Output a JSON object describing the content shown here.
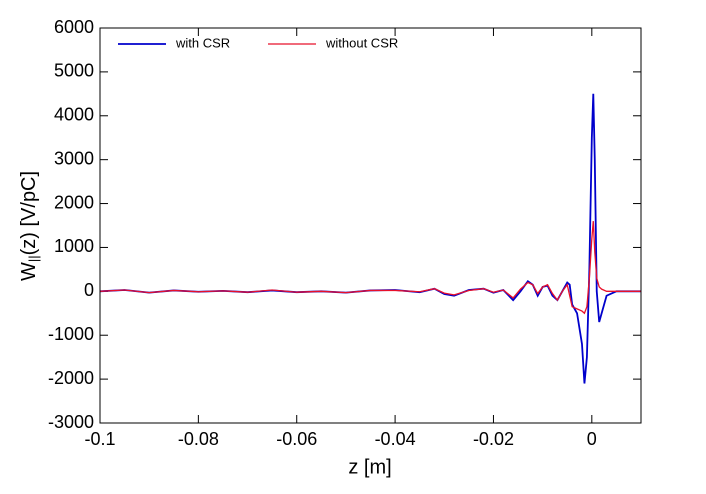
{
  "chart_data": {
    "type": "line",
    "x_label": "z [m]",
    "y_label": [
      "W",
      "||",
      "(z) [V/pC]"
    ],
    "x": [
      -0.1,
      -0.095,
      -0.09,
      -0.085,
      -0.08,
      -0.075,
      -0.07,
      -0.065,
      -0.06,
      -0.055,
      -0.05,
      -0.045,
      -0.04,
      -0.035,
      -0.032,
      -0.03,
      -0.028,
      -0.025,
      -0.022,
      -0.02,
      -0.018,
      -0.016,
      -0.0145,
      -0.013,
      -0.012,
      -0.011,
      -0.01,
      -0.009,
      -0.008,
      -0.007,
      -0.006,
      -0.005,
      -0.0045,
      -0.004,
      -0.003,
      -0.002,
      -0.0015,
      -0.001,
      -0.0005,
      0,
      0.0003,
      0.0006,
      0.001,
      0.0015,
      0.002,
      0.003,
      0.005,
      0.01
    ],
    "series": [
      {
        "name": "with CSR",
        "color": "#0000cc",
        "values": [
          0,
          30,
          -30,
          20,
          -10,
          10,
          -20,
          20,
          -20,
          0,
          -30,
          20,
          30,
          -20,
          60,
          -60,
          -100,
          30,
          60,
          -30,
          30,
          -200,
          0,
          230,
          150,
          -100,
          100,
          130,
          -100,
          -200,
          0,
          200,
          150,
          -300,
          -500,
          -1200,
          -2100,
          -1500,
          500,
          3500,
          4500,
          3000,
          0,
          -700,
          -500,
          -100,
          0,
          0
        ]
      },
      {
        "name": "without CSR",
        "color": "#e8102a",
        "values": [
          0,
          30,
          -30,
          20,
          -10,
          10,
          -20,
          30,
          -20,
          0,
          -30,
          20,
          20,
          -10,
          60,
          -40,
          -80,
          20,
          60,
          -20,
          30,
          -150,
          50,
          200,
          150,
          -50,
          100,
          150,
          -50,
          -200,
          0,
          150,
          -100,
          -350,
          -400,
          -450,
          -500,
          -350,
          300,
          1200,
          1600,
          900,
          300,
          100,
          50,
          0,
          0,
          0
        ]
      }
    ],
    "xlim": [
      -0.1,
      0.01
    ],
    "xticks": [
      -0.1,
      -0.08,
      -0.06,
      -0.04,
      -0.02,
      0
    ],
    "ylim": [
      -3000,
      6000
    ],
    "yticks": [
      -3000,
      -2000,
      -1000,
      0,
      1000,
      2000,
      3000,
      4000,
      5000,
      6000
    ],
    "legend": "top-left"
  }
}
